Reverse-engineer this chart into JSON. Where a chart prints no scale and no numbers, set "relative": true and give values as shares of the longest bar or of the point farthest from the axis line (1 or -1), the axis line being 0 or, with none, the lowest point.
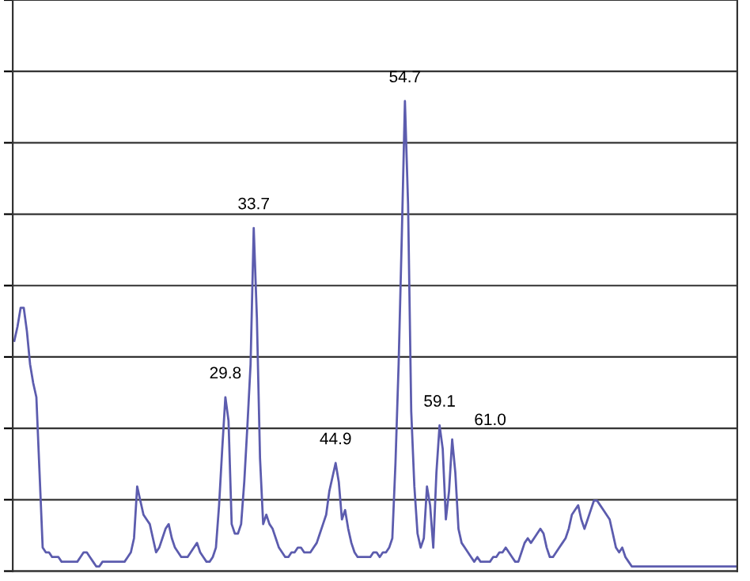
{
  "chart_data": {
    "type": "line",
    "relative": true,
    "grid": "y",
    "marker": "none",
    "line_style": "solid",
    "categories": [
      null,
      null,
      null,
      null,
      null,
      null,
      null,
      null,
      null,
      null,
      null,
      null,
      null,
      null,
      null,
      null,
      null,
      null,
      null,
      null,
      null,
      null,
      null,
      null,
      null,
      null,
      null,
      null,
      null,
      null,
      null,
      null,
      null,
      null,
      null,
      null,
      null,
      null,
      null,
      null,
      null,
      null,
      null,
      null,
      null,
      null,
      null,
      null,
      null,
      null,
      null,
      null,
      null,
      null,
      null,
      null,
      null,
      null,
      null,
      null,
      null,
      null,
      null,
      null,
      null,
      null,
      null,
      null,
      null,
      null,
      null,
      null,
      null,
      null,
      null,
      null,
      null,
      null,
      null,
      null,
      null,
      null,
      null,
      null,
      null,
      null,
      null,
      null,
      null,
      null,
      null,
      null,
      null,
      null,
      null,
      null,
      null,
      null,
      null,
      null,
      null,
      null,
      null,
      null,
      null,
      null,
      null,
      null,
      null,
      null,
      null,
      null,
      null,
      null,
      null,
      null,
      null,
      null,
      null,
      null,
      null,
      null,
      null,
      null,
      null,
      null,
      null,
      null,
      null,
      null,
      null,
      null,
      null,
      null,
      null,
      null,
      null,
      null,
      null,
      null,
      null,
      null,
      null,
      null,
      null,
      null,
      null,
      null,
      null,
      null,
      null,
      null,
      null,
      null,
      null,
      null,
      null,
      null,
      null,
      null,
      null,
      null,
      null,
      null,
      null,
      null,
      null,
      null,
      null,
      null,
      null,
      null,
      null,
      null,
      null,
      null,
      null,
      null,
      null,
      null,
      null,
      null,
      null,
      null,
      null,
      null,
      null,
      null,
      null,
      null,
      null,
      null,
      null,
      null,
      null,
      null,
      null,
      null,
      null,
      null,
      null,
      null,
      null,
      null,
      null,
      null,
      null,
      null,
      null,
      null,
      null,
      null,
      null,
      null,
      null,
      null,
      null,
      null,
      null,
      null,
      null,
      null,
      null,
      null,
      null,
      null,
      null,
      null,
      null,
      null
    ],
    "series": [
      {
        "color": "#5c5cae",
        "values": [
          0.49,
          0.52,
          0.56,
          0.56,
          0.51,
          0.44,
          0.4,
          0.37,
          0.21,
          0.05,
          0.04,
          0.04,
          0.03,
          0.03,
          0.03,
          0.02,
          0.02,
          0.02,
          0.02,
          0.02,
          0.02,
          0.03,
          0.04,
          0.04,
          0.03,
          0.02,
          0.01,
          0.01,
          0.02,
          0.02,
          0.02,
          0.02,
          0.02,
          0.02,
          0.02,
          0.02,
          0.03,
          0.04,
          0.07,
          0.18,
          0.15,
          0.12,
          0.11,
          0.1,
          0.07,
          0.04,
          0.05,
          0.07,
          0.09,
          0.1,
          0.07,
          0.05,
          0.04,
          0.03,
          0.03,
          0.03,
          0.04,
          0.05,
          0.06,
          0.04,
          0.03,
          0.02,
          0.02,
          0.03,
          0.05,
          0.14,
          0.26,
          0.37,
          0.32,
          0.1,
          0.08,
          0.08,
          0.1,
          0.19,
          0.31,
          0.44,
          0.73,
          0.54,
          0.24,
          0.1,
          0.12,
          0.1,
          0.09,
          0.07,
          0.05,
          0.04,
          0.03,
          0.03,
          0.04,
          0.04,
          0.05,
          0.05,
          0.04,
          0.04,
          0.04,
          0.05,
          0.06,
          0.08,
          0.1,
          0.12,
          0.17,
          0.2,
          0.23,
          0.19,
          0.11,
          0.13,
          0.09,
          0.06,
          0.04,
          0.03,
          0.03,
          0.03,
          0.03,
          0.03,
          0.04,
          0.04,
          0.03,
          0.04,
          0.04,
          0.05,
          0.07,
          0.23,
          0.44,
          0.71,
          1.0,
          0.78,
          0.34,
          0.18,
          0.08,
          0.05,
          0.07,
          0.18,
          0.14,
          0.05,
          0.21,
          0.31,
          0.26,
          0.11,
          0.17,
          0.28,
          0.21,
          0.09,
          0.06,
          0.05,
          0.04,
          0.03,
          0.02,
          0.03,
          0.02,
          0.02,
          0.02,
          0.02,
          0.03,
          0.03,
          0.04,
          0.04,
          0.05,
          0.04,
          0.03,
          0.02,
          0.02,
          0.04,
          0.06,
          0.07,
          0.06,
          0.07,
          0.08,
          0.09,
          0.08,
          0.05,
          0.03,
          0.03,
          0.04,
          0.05,
          0.06,
          0.07,
          0.09,
          0.12,
          0.13,
          0.14,
          0.11,
          0.09,
          0.11,
          0.13,
          0.15,
          0.15,
          0.14,
          0.13,
          0.12,
          0.11,
          0.08,
          0.05,
          0.04,
          0.05,
          0.03,
          0.02,
          0.01,
          0.01,
          0.01,
          0.01,
          0.01,
          0.01,
          0.01,
          0.01,
          0.01,
          0.01,
          0.01,
          0.01,
          0.01,
          0.01,
          0.01,
          0.01,
          0.01,
          0.01,
          0.01,
          0.01,
          0.01,
          0.01,
          0.01,
          0.01,
          0.01,
          0.01,
          0.01,
          0.01,
          0.01,
          0.01,
          0.01,
          0.01,
          0.01,
          0.01
        ]
      }
    ],
    "annotations": [
      "29.8",
      "33.7",
      "44.9",
      "54.7",
      "59.1",
      "61.0"
    ]
  }
}
